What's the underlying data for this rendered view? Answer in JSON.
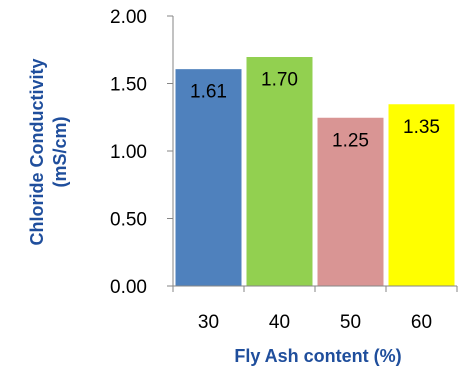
{
  "chart_data": {
    "type": "bar",
    "xlabel": "Fly Ash content (%)",
    "ylabel_line1": "Chloride Conductivity",
    "ylabel_line2": "(mS/cm)",
    "categories": [
      "30",
      "40",
      "50",
      "60"
    ],
    "values": [
      1.61,
      1.7,
      1.25,
      1.35
    ],
    "value_labels": [
      "1.61",
      "1.70",
      "1.25",
      "1.35"
    ],
    "bar_colors": [
      "#4f81bd",
      "#92d050",
      "#d99594",
      "#ffff00"
    ],
    "ylim": [
      0,
      2.0
    ],
    "yticks": [
      0.0,
      0.5,
      1.0,
      1.5,
      2.0
    ],
    "ytick_labels": [
      "0.00",
      "0.50",
      "1.00",
      "1.50",
      "2.00"
    ],
    "grid": false,
    "legend": "none"
  }
}
